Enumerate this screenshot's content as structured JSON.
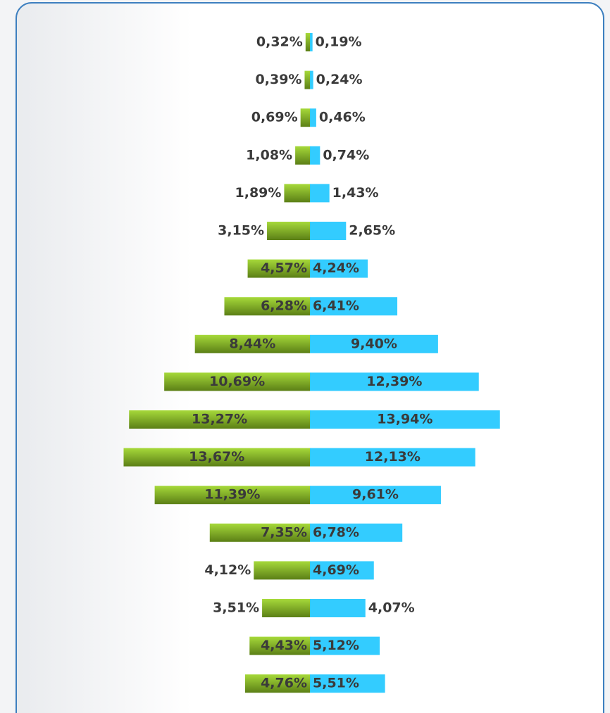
{
  "chart_data": {
    "type": "pyramid",
    "series": [
      {
        "color": "#8dc02c",
        "values": [
          0.32,
          0.39,
          0.69,
          1.08,
          1.89,
          3.15,
          4.57,
          6.28,
          8.44,
          10.69,
          13.27,
          13.67,
          11.39,
          7.35,
          4.12,
          3.51,
          4.43,
          4.76
        ],
        "value_labels": [
          "0,32%",
          "0,39%",
          "0,69%",
          "1,08%",
          "1,89%",
          "3,15%",
          "4,57%",
          "6,28%",
          "8,44%",
          "10,69%",
          "13,27%",
          "13,67%",
          "11,39%",
          "7,35%",
          "4,12%",
          "3,51%",
          "4,43%",
          "4,76%"
        ]
      },
      {
        "color": "#33ccff",
        "values": [
          0.19,
          0.24,
          0.46,
          0.74,
          1.43,
          2.65,
          4.24,
          6.41,
          9.4,
          12.39,
          13.94,
          12.13,
          9.61,
          6.78,
          4.69,
          4.07,
          5.12,
          5.51
        ],
        "value_labels": [
          "0,19%",
          "0,24%",
          "0,46%",
          "0,74%",
          "1,43%",
          "2,65%",
          "4,24%",
          "6,41%",
          "9,40%",
          "12,39%",
          "13,94%",
          "12,13%",
          "9,61%",
          "6,78%",
          "4,69%",
          "4,07%",
          "5,12%",
          "5,51%"
        ]
      }
    ]
  }
}
